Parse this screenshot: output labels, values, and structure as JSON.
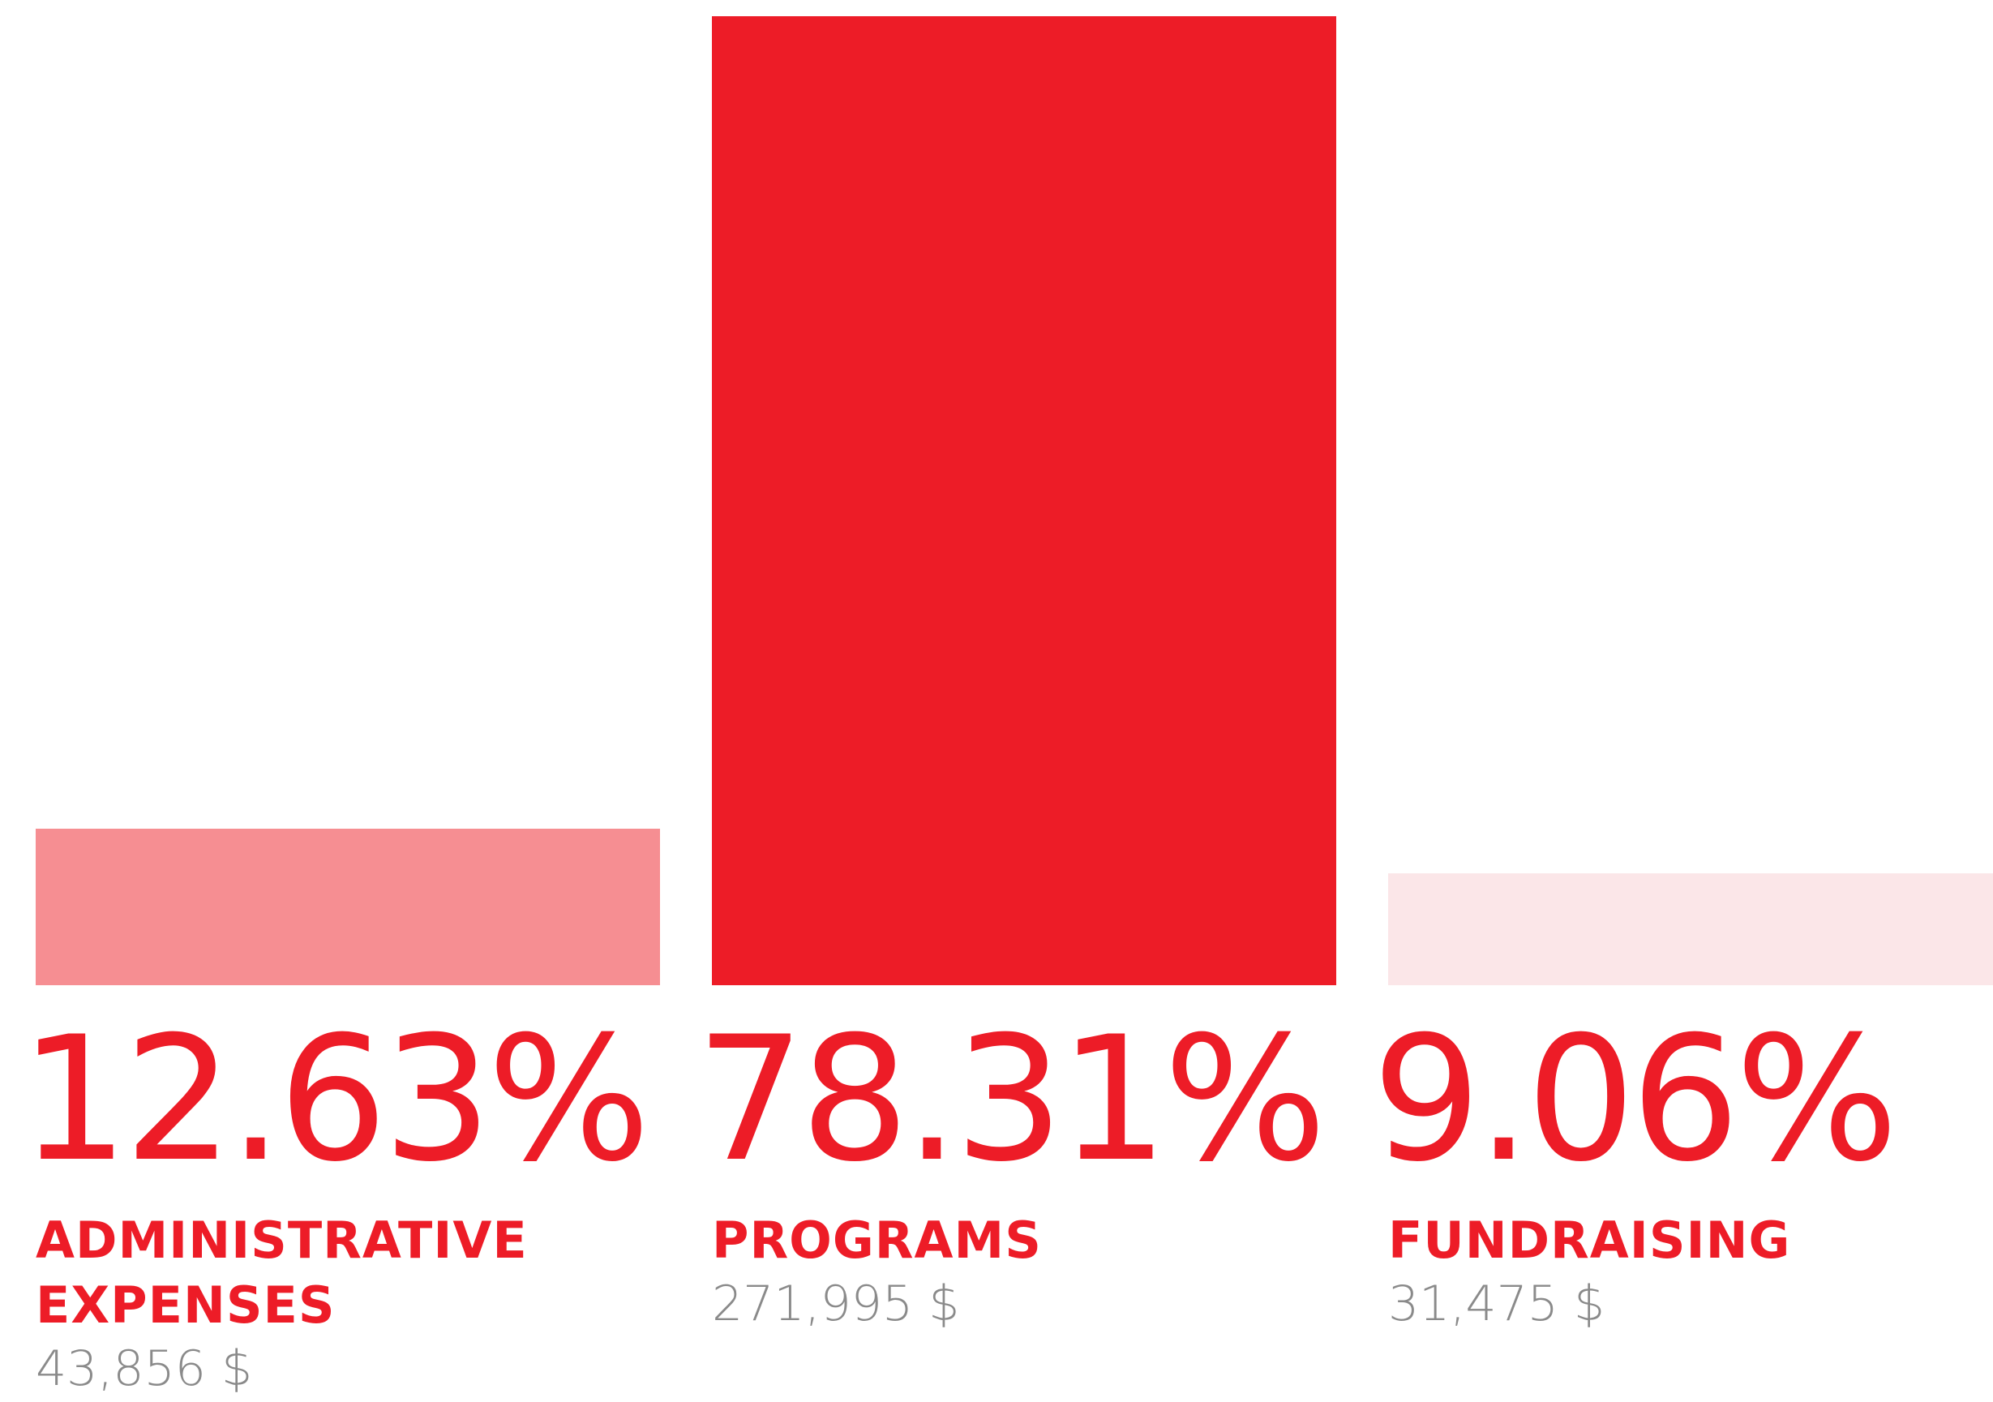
{
  "chart_data": {
    "type": "bar",
    "categories": [
      "ADMINISTRATIVE EXPENSES",
      "PROGRAMS",
      "FUNDRAISING"
    ],
    "values": [
      12.63,
      78.31,
      9.06
    ],
    "value_labels": [
      "12.63%",
      "78.31%",
      "9.06%"
    ],
    "colors": [
      "#f68e92",
      "#ed1c27",
      "#fbe6e8"
    ],
    "amounts": {
      "values": [
        43856,
        271995,
        31475
      ],
      "value_labels": [
        "43,856 $",
        "271,995 $",
        "31,475 $"
      ]
    }
  }
}
